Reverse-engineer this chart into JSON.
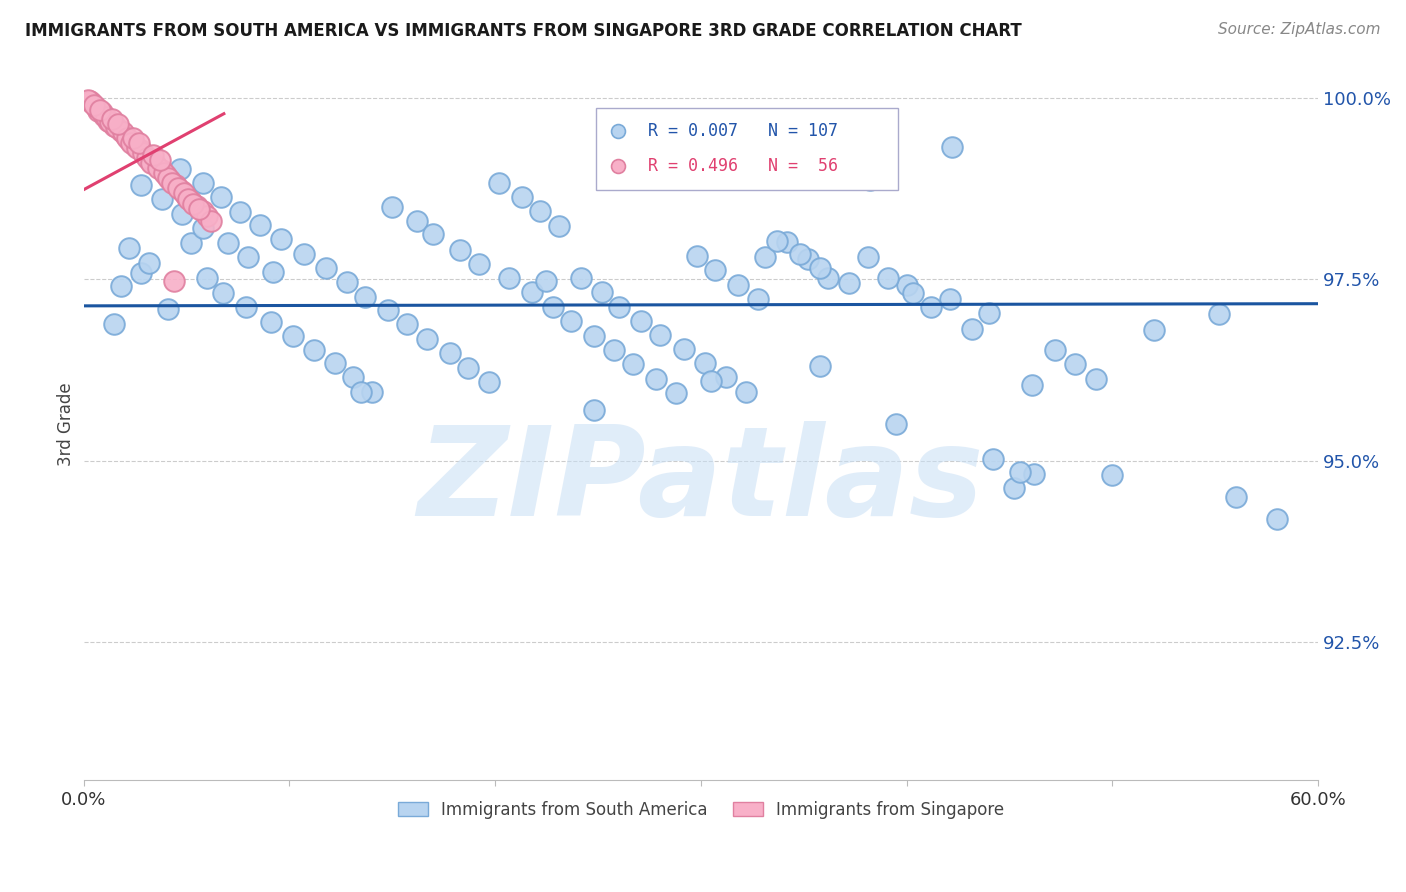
{
  "title": "IMMIGRANTS FROM SOUTH AMERICA VS IMMIGRANTS FROM SINGAPORE 3RD GRADE CORRELATION CHART",
  "source": "Source: ZipAtlas.com",
  "ylabel": "3rd Grade",
  "legend_label1": "Immigrants from South America",
  "legend_label2": "Immigrants from Singapore",
  "r1": 0.007,
  "n1": 107,
  "r2": 0.496,
  "n2": 56,
  "color_blue": "#b8d4f0",
  "color_blue_line": "#1a55a0",
  "color_blue_edge": "#7aaad8",
  "color_pink": "#f8b0c8",
  "color_pink_line": "#e04070",
  "color_pink_edge": "#e080a0",
  "xlim": [
    0.0,
    0.6
  ],
  "ylim": [
    0.906,
    1.004
  ],
  "yticks": [
    1.0,
    0.975,
    0.95,
    0.925
  ],
  "ytick_labels": [
    "100.0%",
    "97.5%",
    "95.0%",
    "92.5%"
  ],
  "xtick_vals": [
    0.0,
    0.1,
    0.2,
    0.3,
    0.4,
    0.5,
    0.6
  ],
  "xtick_labels": [
    "0.0%",
    "",
    "",
    "",
    "",
    "",
    "60.0%"
  ],
  "watermark": "ZIPatlas",
  "blue_x": [
    0.022,
    0.028,
    0.018,
    0.032,
    0.041,
    0.015,
    0.052,
    0.06,
    0.068,
    0.079,
    0.091,
    0.102,
    0.112,
    0.122,
    0.131,
    0.14,
    0.15,
    0.162,
    0.17,
    0.183,
    0.192,
    0.202,
    0.213,
    0.222,
    0.231,
    0.242,
    0.252,
    0.26,
    0.271,
    0.28,
    0.292,
    0.302,
    0.312,
    0.322,
    0.331,
    0.342,
    0.352,
    0.362,
    0.381,
    0.4,
    0.421,
    0.44,
    0.461,
    0.5,
    0.552,
    0.047,
    0.058,
    0.067,
    0.076,
    0.086,
    0.096,
    0.107,
    0.118,
    0.128,
    0.137,
    0.148,
    0.157,
    0.167,
    0.178,
    0.187,
    0.197,
    0.207,
    0.218,
    0.228,
    0.237,
    0.248,
    0.258,
    0.267,
    0.278,
    0.288,
    0.298,
    0.307,
    0.318,
    0.328,
    0.337,
    0.348,
    0.358,
    0.372,
    0.382,
    0.391,
    0.403,
    0.412,
    0.422,
    0.432,
    0.442,
    0.452,
    0.462,
    0.472,
    0.482,
    0.492,
    0.028,
    0.038,
    0.048,
    0.058,
    0.07,
    0.08,
    0.092,
    0.455,
    0.52,
    0.56,
    0.58,
    0.395,
    0.305,
    0.248,
    0.358,
    0.135,
    0.225
  ],
  "blue_y": [
    0.9793,
    0.9758,
    0.9741,
    0.9772,
    0.9709,
    0.9688,
    0.98,
    0.9752,
    0.9731,
    0.9712,
    0.9691,
    0.9672,
    0.9653,
    0.9634,
    0.9615,
    0.9594,
    0.985,
    0.983,
    0.9812,
    0.979,
    0.9771,
    0.9882,
    0.9863,
    0.9844,
    0.9823,
    0.9752,
    0.9732,
    0.9712,
    0.9692,
    0.9673,
    0.9654,
    0.9635,
    0.9615,
    0.9595,
    0.978,
    0.9801,
    0.9778,
    0.9752,
    0.9781,
    0.9742,
    0.9722,
    0.9703,
    0.9604,
    0.948,
    0.9702,
    0.9901,
    0.9882,
    0.9863,
    0.9843,
    0.9824,
    0.9805,
    0.9785,
    0.9766,
    0.9746,
    0.9726,
    0.9707,
    0.9688,
    0.9668,
    0.9648,
    0.9628,
    0.9609,
    0.9751,
    0.9732,
    0.9712,
    0.9692,
    0.9672,
    0.9653,
    0.9633,
    0.9613,
    0.9593,
    0.9782,
    0.9762,
    0.9742,
    0.9722,
    0.9803,
    0.9784,
    0.9765,
    0.9745,
    0.9886,
    0.9751,
    0.9731,
    0.9711,
    0.9932,
    0.9682,
    0.9502,
    0.9463,
    0.9482,
    0.9652,
    0.9633,
    0.9613,
    0.988,
    0.986,
    0.984,
    0.982,
    0.98,
    0.978,
    0.976,
    0.9484,
    0.968,
    0.945,
    0.942,
    0.955,
    0.961,
    0.957,
    0.963,
    0.9595,
    0.9748
  ],
  "pink_x": [
    0.004,
    0.007,
    0.01,
    0.012,
    0.015,
    0.018,
    0.02,
    0.022,
    0.025,
    0.028,
    0.03,
    0.032,
    0.035,
    0.038,
    0.04,
    0.042,
    0.045,
    0.048,
    0.05,
    0.052,
    0.055,
    0.058,
    0.06,
    0.062,
    0.003,
    0.006,
    0.009,
    0.011,
    0.013,
    0.016,
    0.019,
    0.021,
    0.023,
    0.026,
    0.029,
    0.031,
    0.033,
    0.036,
    0.039,
    0.041,
    0.043,
    0.046,
    0.049,
    0.051,
    0.053,
    0.056,
    0.002,
    0.005,
    0.008,
    0.014,
    0.017,
    0.024,
    0.027,
    0.034,
    0.037,
    0.044
  ],
  "pink_y": [
    0.9993,
    0.9982,
    0.9975,
    0.9968,
    0.9961,
    0.9954,
    0.9948,
    0.9941,
    0.9934,
    0.9928,
    0.9921,
    0.9914,
    0.9907,
    0.99,
    0.9893,
    0.9886,
    0.9879,
    0.9872,
    0.9865,
    0.9858,
    0.9851,
    0.9844,
    0.9837,
    0.983,
    0.9995,
    0.9987,
    0.998,
    0.9973,
    0.9966,
    0.9959,
    0.9952,
    0.9945,
    0.9938,
    0.9931,
    0.9924,
    0.9917,
    0.991,
    0.9903,
    0.9896,
    0.9889,
    0.9882,
    0.9875,
    0.9868,
    0.9861,
    0.9854,
    0.9847,
    0.9997,
    0.999,
    0.9983,
    0.997,
    0.9963,
    0.9945,
    0.9938,
    0.9921,
    0.9914,
    0.9748
  ]
}
